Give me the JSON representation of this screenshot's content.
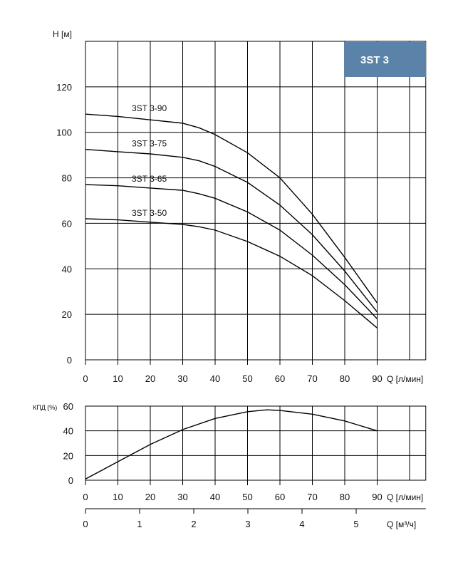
{
  "badge": {
    "label": "3ST 3",
    "color": "#5b82a9"
  },
  "chart_data": [
    {
      "type": "line",
      "title": "",
      "ylabel": "H [м]",
      "xlabel": "Q [л/мин]",
      "xlim": [
        0,
        105
      ],
      "ylim": [
        0,
        140
      ],
      "x_ticks": [
        0,
        10,
        20,
        30,
        40,
        50,
        60,
        70,
        80,
        90
      ],
      "y_ticks": [
        0,
        20,
        40,
        60,
        80,
        100,
        120
      ],
      "series": [
        {
          "name": "3ST 3-90",
          "x": [
            0,
            10,
            20,
            30,
            35,
            40,
            50,
            60,
            70,
            80,
            90
          ],
          "values": [
            108,
            107,
            105.5,
            104,
            102,
            99,
            91,
            80,
            64,
            45,
            25
          ]
        },
        {
          "name": "3ST 3-75",
          "x": [
            0,
            10,
            20,
            30,
            35,
            40,
            50,
            60,
            70,
            80,
            90
          ],
          "values": [
            92.5,
            91.5,
            90.5,
            89,
            87.5,
            85,
            78,
            68,
            55,
            39,
            21
          ]
        },
        {
          "name": "3ST 3-65",
          "x": [
            0,
            10,
            20,
            30,
            35,
            40,
            50,
            60,
            70,
            80,
            90
          ],
          "values": [
            77,
            76.5,
            75.5,
            74.5,
            73,
            71,
            65,
            57,
            46,
            33,
            18
          ]
        },
        {
          "name": "3ST 3-50",
          "x": [
            0,
            10,
            20,
            30,
            35,
            40,
            50,
            60,
            70,
            80,
            90
          ],
          "values": [
            62,
            61.5,
            60.5,
            59.5,
            58.5,
            57,
            52,
            45.5,
            37,
            26,
            14
          ]
        }
      ]
    },
    {
      "type": "line",
      "title": "",
      "ylabel": "КПД (%)",
      "xlabel": "Q [л/мин]",
      "xlim": [
        0,
        105
      ],
      "ylim": [
        0,
        60
      ],
      "x_ticks": [
        0,
        10,
        20,
        30,
        40,
        50,
        60,
        70,
        80,
        90
      ],
      "y_ticks": [
        0,
        20,
        40,
        60
      ],
      "series": [
        {
          "name": "",
          "x": [
            0,
            10,
            20,
            30,
            40,
            50,
            56,
            60,
            70,
            80,
            90
          ],
          "values": [
            1,
            15,
            29,
            41,
            50,
            55.5,
            57,
            56.5,
            53.5,
            48,
            40
          ]
        }
      ]
    },
    {
      "type": "axis",
      "xlabel": "Q [м³/ч]",
      "xlim": [
        0,
        6.3
      ],
      "x_ticks": [
        0,
        1,
        2,
        3,
        4,
        5
      ]
    }
  ]
}
